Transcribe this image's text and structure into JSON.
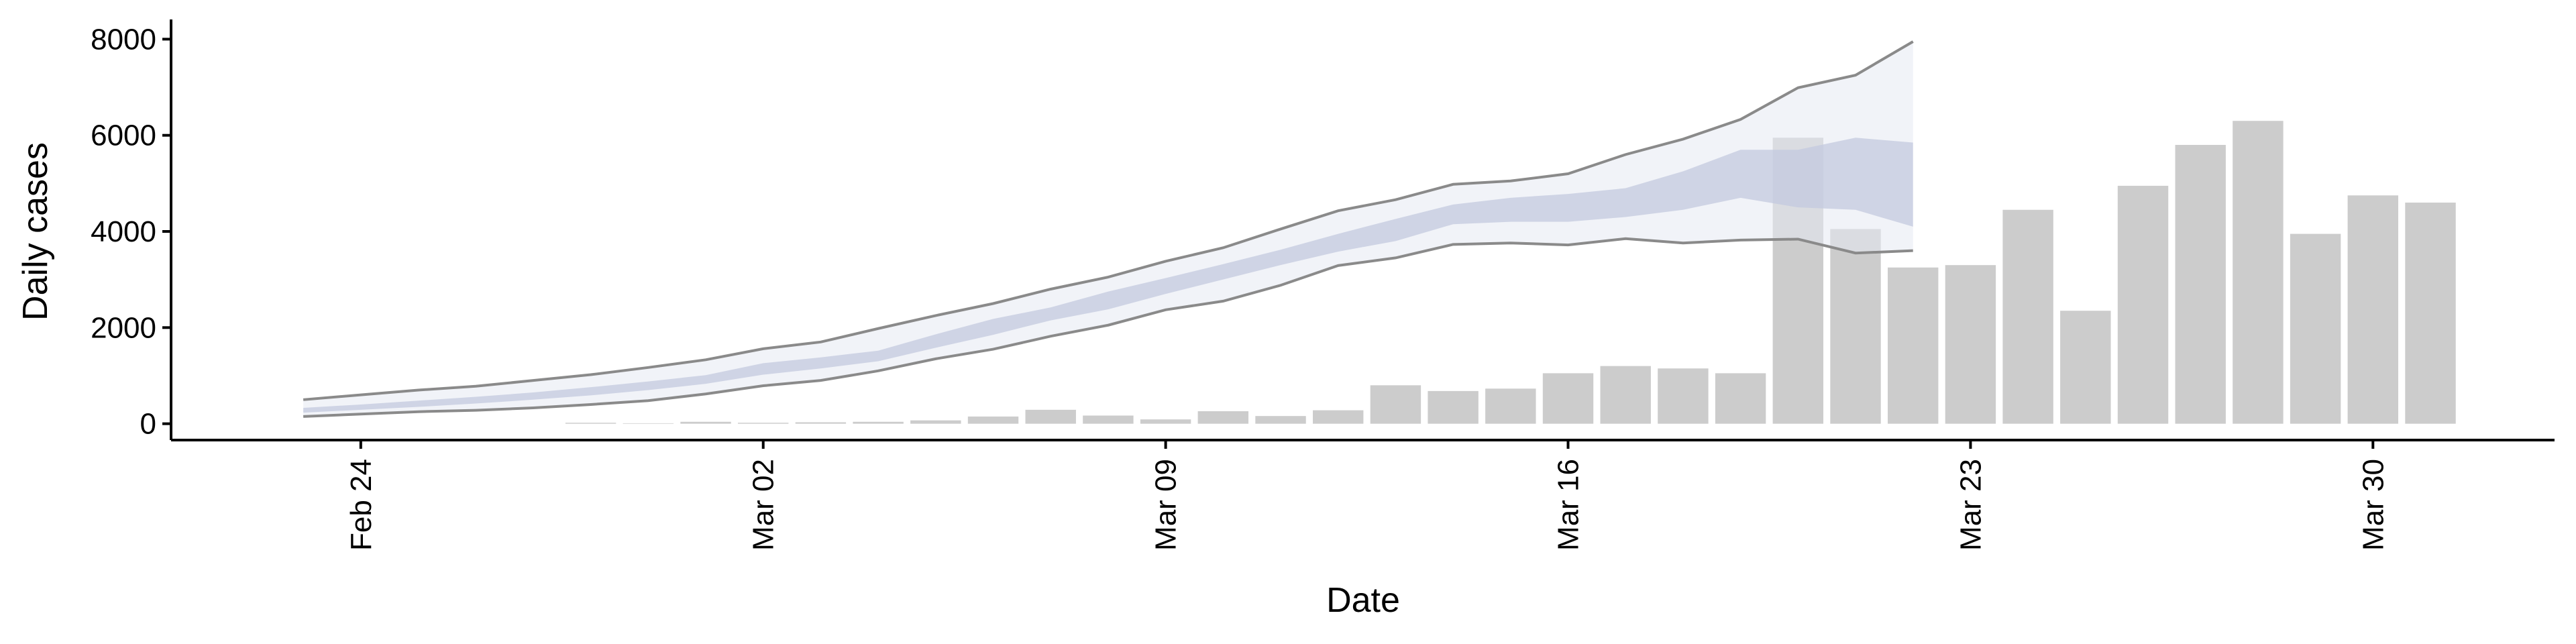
{
  "chart_data": {
    "type": "bar",
    "xlabel": "Date",
    "ylabel": "Daily cases",
    "categories": [
      null,
      "Feb 24",
      null,
      null,
      null,
      null,
      null,
      null,
      "Mar 02",
      null,
      null,
      null,
      null,
      null,
      null,
      "Mar 09",
      null,
      null,
      null,
      null,
      null,
      null,
      "Mar 16",
      null,
      null,
      null,
      null,
      null,
      null,
      "Mar 23",
      null,
      null,
      null,
      null,
      null,
      null,
      "Mar 30",
      null
    ],
    "values": [
      null,
      null,
      null,
      null,
      null,
      20,
      10,
      40,
      20,
      30,
      40,
      70,
      150,
      290,
      170,
      90,
      260,
      160,
      280,
      800,
      680,
      730,
      1050,
      1200,
      1150,
      1050,
      5950,
      4050,
      3250,
      3300,
      4450,
      2350,
      4950,
      5800,
      6300,
      3950,
      4750,
      4600
    ],
    "color": "#cccccc",
    "intervals": [
      {
        "upper": [
          500,
          600,
          700,
          780,
          900,
          1020,
          1170,
          1330,
          1560,
          1700,
          1980,
          2250,
          2500,
          2800,
          3050,
          3380,
          3660,
          4050,
          4430,
          4660,
          4980,
          5050,
          5200,
          5600,
          5920,
          6330,
          6990,
          7250,
          7950,
          null,
          null,
          null,
          null,
          null,
          null,
          null,
          null,
          null
        ],
        "lower": [
          150,
          200,
          250,
          280,
          330,
          400,
          480,
          620,
          790,
          900,
          1100,
          1350,
          1550,
          1820,
          2050,
          2370,
          2550,
          2880,
          3290,
          3450,
          3730,
          3760,
          3720,
          3850,
          3760,
          3820,
          3840,
          3550,
          3600,
          null,
          null,
          null,
          null,
          null,
          null,
          null,
          null,
          null
        ],
        "fill": "#e6e9f2",
        "stroke": "#8a8a8a"
      },
      {
        "upper": [
          330,
          400,
          480,
          560,
          650,
          760,
          880,
          1010,
          1260,
          1380,
          1520,
          1860,
          2180,
          2420,
          2750,
          3030,
          3320,
          3620,
          3950,
          4260,
          4560,
          4700,
          4780,
          4900,
          5250,
          5700,
          5700,
          5950,
          5850,
          null,
          null,
          null,
          null,
          null,
          null,
          null,
          null,
          null
        ],
        "lower": [
          230,
          290,
          350,
          420,
          500,
          590,
          700,
          830,
          1020,
          1150,
          1300,
          1580,
          1850,
          2150,
          2380,
          2700,
          3000,
          3300,
          3580,
          3800,
          4150,
          4200,
          4200,
          4300,
          4450,
          4700,
          4500,
          4450,
          4100,
          null,
          null,
          null,
          null,
          null,
          null,
          null,
          null,
          null
        ],
        "fill": "#c3cadf",
        "stroke": null
      }
    ],
    "ylim": [
      -340,
      8410
    ],
    "yticks": [
      0,
      2000,
      4000,
      6000,
      8000
    ]
  }
}
